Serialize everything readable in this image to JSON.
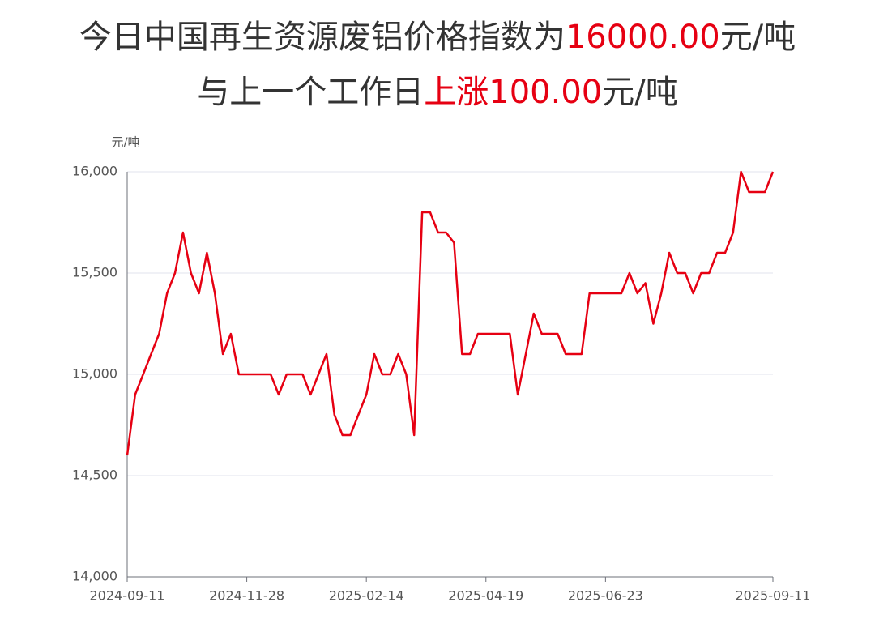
{
  "chart_data": {
    "type": "line",
    "title_lines": [
      [
        {
          "text": "今日中国再生资源废铝价格指数为",
          "color": "#333333"
        },
        {
          "text": "16000.00",
          "color": "#e60012"
        },
        {
          "text": "元/吨",
          "color": "#333333"
        }
      ],
      [
        {
          "text": "与上一个工作日",
          "color": "#333333"
        },
        {
          "text": "上涨100.00",
          "color": "#e60012"
        },
        {
          "text": "元/吨",
          "color": "#333333"
        }
      ]
    ],
    "y_label": "元/吨",
    "categories": [
      "2024-09-11",
      null,
      null,
      null,
      null,
      null,
      null,
      null,
      null,
      null,
      null,
      null,
      null,
      null,
      null,
      "2024-11-28",
      null,
      null,
      null,
      null,
      null,
      null,
      null,
      null,
      null,
      null,
      null,
      null,
      null,
      null,
      "2025-02-14",
      null,
      null,
      null,
      null,
      null,
      null,
      null,
      null,
      null,
      null,
      null,
      null,
      null,
      null,
      "2025-04-19",
      null,
      null,
      null,
      null,
      null,
      null,
      null,
      null,
      null,
      null,
      null,
      null,
      null,
      null,
      "2025-06-23",
      null,
      null,
      null,
      null,
      null,
      null,
      null,
      null,
      null,
      null,
      null,
      null,
      null,
      null,
      null,
      null,
      null,
      null,
      null,
      null,
      "2025-09-11"
    ],
    "series": [
      {
        "name": "废铝价格指数",
        "color": "#e60012",
        "values": [
          14600,
          14900,
          15000,
          15100,
          15200,
          15400,
          15500,
          15700,
          15500,
          15400,
          15600,
          15400,
          15100,
          15200,
          15000,
          15000,
          15000,
          15000,
          15000,
          14900,
          15000,
          15000,
          15000,
          14900,
          15000,
          15100,
          14800,
          14700,
          14700,
          14800,
          14900,
          15100,
          15000,
          15000,
          15100,
          15000,
          14700,
          15800,
          15800,
          15700,
          15700,
          15650,
          15100,
          15100,
          15200,
          15200,
          15200,
          15200,
          15200,
          14900,
          15100,
          15300,
          15200,
          15200,
          15200,
          15100,
          15100,
          15100,
          15400,
          15400,
          15400,
          15400,
          15400,
          15500,
          15400,
          15450,
          15250,
          15400,
          15600,
          15500,
          15500,
          15400,
          15500,
          15500,
          15600,
          15600,
          15700,
          16000,
          15900,
          15900,
          15900,
          16000
        ]
      }
    ],
    "ylim": [
      14000,
      16000
    ],
    "yticks": [
      {
        "value": 14000,
        "label": "14,000"
      },
      {
        "value": 14500,
        "label": "14,500"
      },
      {
        "value": 15000,
        "label": "15,000"
      },
      {
        "value": 15500,
        "label": "15,500"
      },
      {
        "value": 16000,
        "label": "16,000"
      }
    ],
    "grid": true
  }
}
